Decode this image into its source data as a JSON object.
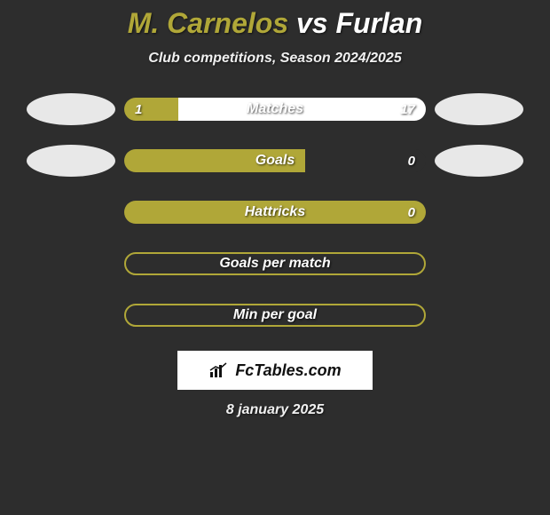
{
  "title": {
    "player1": "M. Carnelos",
    "vs": "vs",
    "player2": "Furlan"
  },
  "subtitle": "Club competitions, Season 2024/2025",
  "colors": {
    "player1": "#b0a738",
    "player2": "#ffffff",
    "background": "#2d2d2d",
    "avatar": "#e8e8e8"
  },
  "stats": [
    {
      "label": "Matches",
      "left_value": "1",
      "right_value": "17",
      "left_pct": 18,
      "right_pct": 82,
      "show_avatars": true,
      "filled": true
    },
    {
      "label": "Goals",
      "left_value": "",
      "right_value": "0",
      "left_pct": 60,
      "right_pct": 0,
      "show_avatars": true,
      "filled": true
    },
    {
      "label": "Hattricks",
      "left_value": "",
      "right_value": "0",
      "left_pct": 100,
      "right_pct": 0,
      "show_avatars": false,
      "filled": true
    },
    {
      "label": "Goals per match",
      "left_value": "",
      "right_value": "",
      "left_pct": 0,
      "right_pct": 0,
      "show_avatars": false,
      "filled": false
    },
    {
      "label": "Min per goal",
      "left_value": "",
      "right_value": "",
      "left_pct": 0,
      "right_pct": 0,
      "show_avatars": false,
      "filled": false
    }
  ],
  "logo": "FcTables.com",
  "date": "8 january 2025"
}
